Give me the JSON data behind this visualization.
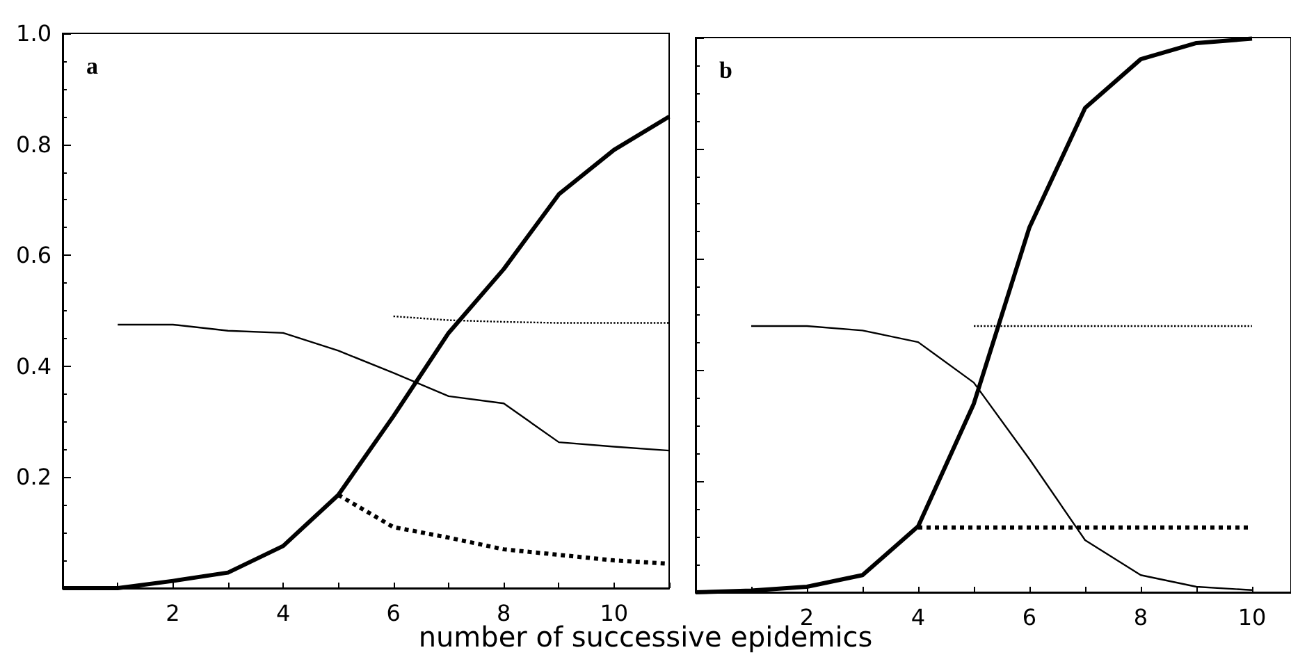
{
  "chart_data": [
    {
      "type": "line",
      "title": "a",
      "xlabel": "number of successive epidemics",
      "xlim": [
        0,
        11
      ],
      "ylim": [
        0,
        1
      ],
      "xticks": [
        {
          "value": 0,
          "label": null
        },
        {
          "value": 1,
          "label": null
        },
        2,
        {
          "value": 3,
          "label": null
        },
        4,
        {
          "value": 5,
          "label": null
        },
        6,
        {
          "value": 7,
          "label": null
        },
        8,
        {
          "value": 9,
          "label": null
        },
        10,
        {
          "value": 11,
          "label": null
        }
      ],
      "yticks": [
        {
          "value": 0,
          "label": null
        },
        0.2,
        0.4,
        0.6,
        0.8,
        {
          "value": 1,
          "label": "1.0"
        }
      ],
      "grid": false,
      "marker": "none",
      "series": [
        {
          "color": "#000000",
          "x": [
            0,
            1,
            2,
            3,
            4,
            5,
            6,
            7,
            8,
            9,
            10,
            11
          ],
          "values": [
            0,
            0,
            0.013,
            0.028,
            0.076,
            0.168,
            0.31,
            0.46,
            0.575,
            0.71,
            0.79,
            0.85
          ]
        },
        {
          "color": "#000000",
          "x": [
            1,
            2,
            3,
            4,
            5,
            6,
            7,
            8,
            9,
            10,
            11
          ],
          "values": [
            0.475,
            0.475,
            0.464,
            0.46,
            0.428,
            0.388,
            0.346,
            0.333,
            0.263,
            0.255,
            0.248
          ]
        },
        {
          "color": "#000000",
          "line_style": "dotted",
          "x": [
            5,
            6,
            7,
            8,
            9,
            10,
            11
          ],
          "values": [
            0.168,
            0.11,
            0.091,
            0.07,
            0.06,
            0.05,
            0.044
          ]
        },
        {
          "color": "#000000",
          "line_style": "dotted",
          "x": [
            6,
            7,
            8,
            9,
            10,
            11
          ],
          "values": [
            0.49,
            0.483,
            0.48,
            0.478,
            0.478,
            0.478
          ]
        }
      ]
    },
    {
      "type": "line",
      "title": "b",
      "xlim": [
        0,
        10.7
      ],
      "ylim": [
        0,
        1
      ],
      "xticks": [
        {
          "value": 0,
          "label": null
        },
        {
          "value": 1,
          "label": null
        },
        2,
        {
          "value": 3,
          "label": null
        },
        4,
        {
          "value": 5,
          "label": null
        },
        6,
        {
          "value": 7,
          "label": null
        },
        8,
        {
          "value": 9,
          "label": null
        },
        10
      ],
      "yticks": [
        {
          "value": 0,
          "label": null
        },
        {
          "value": 0.2,
          "label": null
        },
        {
          "value": 0.4,
          "label": null
        },
        {
          "value": 0.6,
          "label": null
        },
        {
          "value": 0.8,
          "label": null
        },
        {
          "value": 1,
          "label": null
        }
      ],
      "tick_labels": "x",
      "grid": false,
      "marker": "none",
      "series": [
        {
          "color": "#000000",
          "x": [
            0,
            1,
            2,
            3,
            4,
            5,
            6,
            7,
            8,
            9,
            10
          ],
          "values": [
            0,
            0.003,
            0.01,
            0.031,
            0.119,
            0.34,
            0.658,
            0.873,
            0.961,
            0.99,
            0.998
          ]
        },
        {
          "color": "#000000",
          "x": [
            1,
            2,
            3,
            4,
            5,
            6,
            7,
            8,
            9,
            10
          ],
          "values": [
            0.48,
            0.48,
            0.472,
            0.451,
            0.378,
            0.24,
            0.094,
            0.031,
            0.01,
            0.004
          ]
        },
        {
          "color": "#000000",
          "line_style": "dotted",
          "x": [
            4,
            5,
            6,
            7,
            8,
            9,
            10
          ],
          "values": [
            0.117,
            0.117,
            0.117,
            0.117,
            0.117,
            0.117,
            0.117
          ]
        },
        {
          "color": "#000000",
          "line_style": "dotted",
          "x": [
            5,
            6,
            7,
            8,
            9,
            10
          ],
          "values": [
            0.48,
            0.48,
            0.48,
            0.48,
            0.48,
            0.48
          ]
        }
      ]
    }
  ]
}
